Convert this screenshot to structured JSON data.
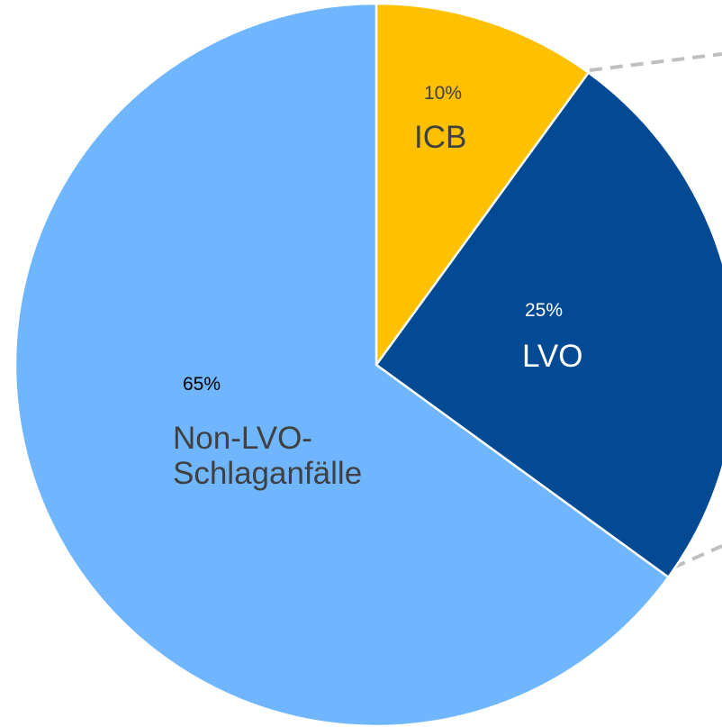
{
  "chart_data": {
    "type": "pie",
    "categories": [
      "ICB",
      "LVO",
      "Non-LVO-Schlaganfälle"
    ],
    "values": [
      10,
      25,
      65
    ],
    "value_labels": [
      "10%",
      "25%",
      "65%"
    ],
    "colors": [
      "#ffc000",
      "#024a94",
      "#6fb6ff"
    ]
  }
}
